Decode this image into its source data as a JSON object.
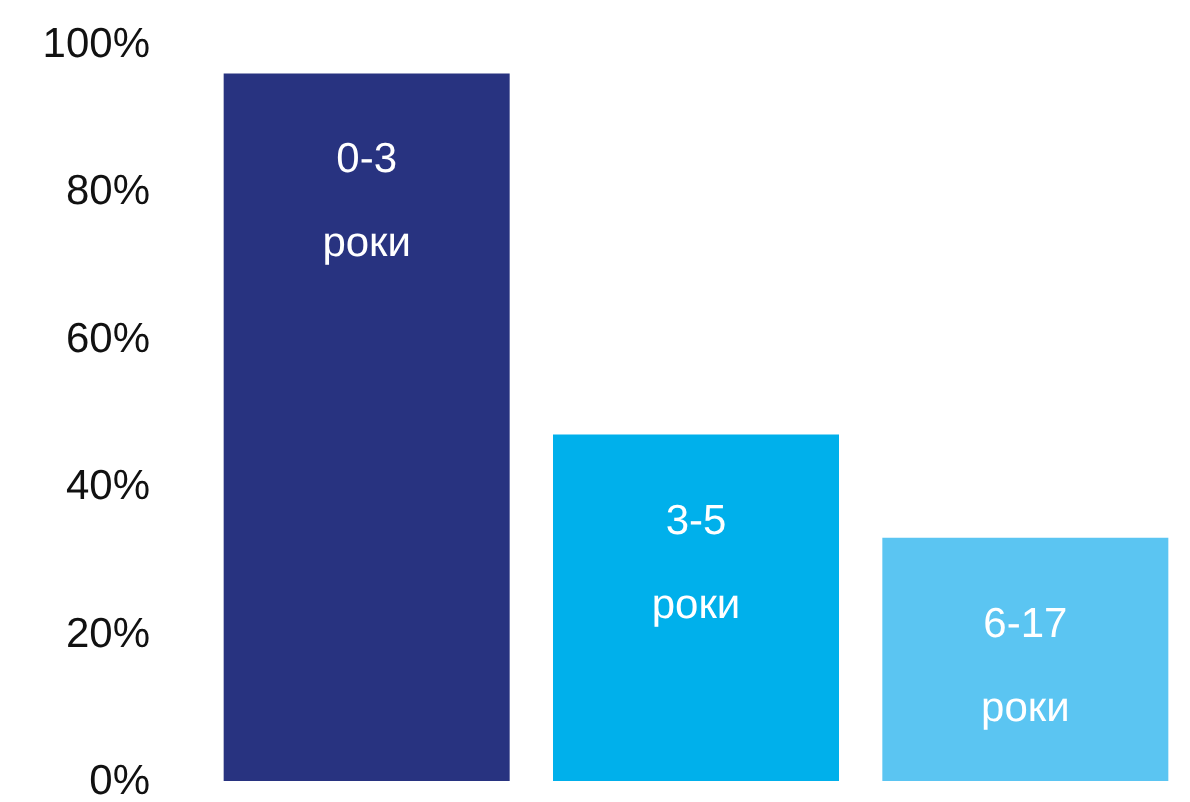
{
  "chart_data": {
    "type": "bar",
    "categories": [
      "0-3 роки",
      "3-5 роки",
      "6-17 роки"
    ],
    "values": [
      96,
      47,
      33
    ],
    "colors": [
      "#283380",
      "#00b0eb",
      "#5bc5f2"
    ],
    "ylim": [
      0,
      100
    ],
    "yticks": [
      {
        "value": 0,
        "label": "0%"
      },
      {
        "value": 20,
        "label": "20%"
      },
      {
        "value": 40,
        "label": "40%"
      },
      {
        "value": 60,
        "label": "60%"
      },
      {
        "value": 80,
        "label": "80%"
      },
      {
        "value": 100,
        "label": "100%"
      }
    ],
    "tick_labels": "y",
    "grid": false
  }
}
